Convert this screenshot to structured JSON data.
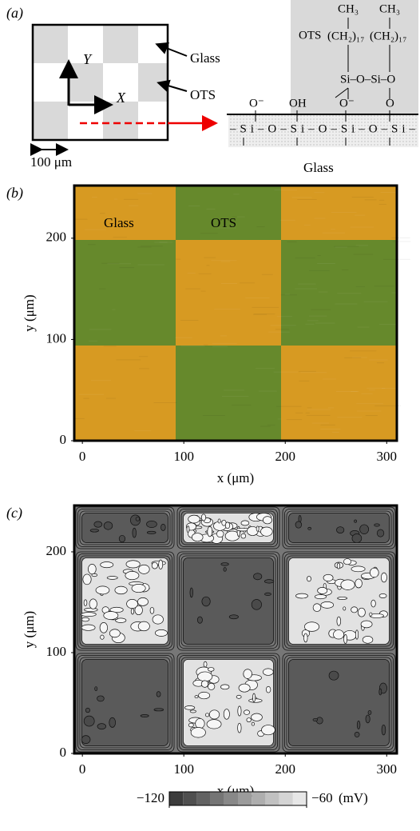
{
  "panel_a": {
    "label": "(a)",
    "axis_y": "Y",
    "axis_x": "X",
    "scale_bar": "100 μm",
    "glass_label": "Glass",
    "ots_label": "OTS",
    "chem": {
      "ots": "OTS",
      "ch3_1": "CH₃",
      "ch3_2": "CH₃",
      "ch2_1": "(CH₂)₁₇",
      "ch2_2": "(CH₂)₁₇",
      "upper_row": "Si–O–Si–O",
      "o_minus_1": "O⁻",
      "oh": "OH",
      "o_minus_2": "O⁻",
      "o": "O",
      "surface_row": "–Si–O–Si–O–Si–O–Si–",
      "glass": "Glass"
    }
  },
  "panel_b": {
    "label": "(b)",
    "xlabel": "x (μm)",
    "ylabel": "y (μm)",
    "xlim": [
      -8,
      310
    ],
    "ylim": [
      0,
      252
    ],
    "xticks": [
      0,
      100,
      200,
      300
    ],
    "yticks": [
      0,
      100,
      200
    ],
    "glass_label": "Glass",
    "ots_label": "OTS"
  },
  "panel_c": {
    "label": "(c)",
    "xlabel": "x (μm)",
    "ylabel": "y (μm)",
    "xlim": [
      -8,
      310
    ],
    "ylim": [
      0,
      246
    ],
    "xticks": [
      0,
      100,
      200,
      300
    ],
    "yticks": [
      0,
      100,
      200
    ],
    "colorbar": {
      "ticks": [
        {
          "value": -120,
          "label": "−120"
        },
        {
          "value": -60,
          "label": "−60"
        }
      ],
      "unit": "(mV)"
    }
  }
}
